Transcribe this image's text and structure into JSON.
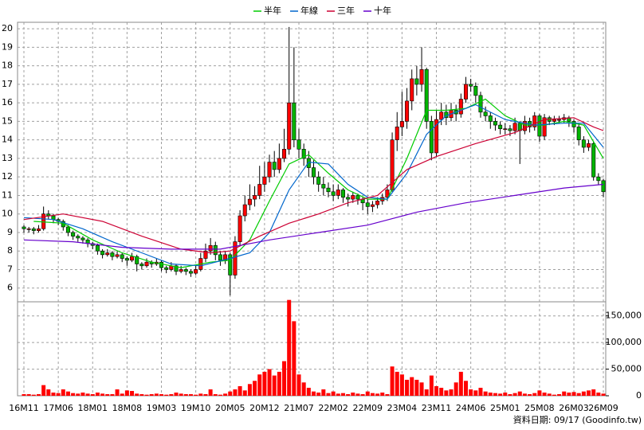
{
  "chart_data": {
    "type": "candlestick",
    "up_color": "#ff0000",
    "down_color": "#00b400",
    "grid": true,
    "ylim": [
      5.3,
      20.35
    ],
    "yticks": [
      6,
      7,
      8,
      9,
      10,
      11,
      12,
      13,
      14,
      15,
      16,
      17,
      18,
      19,
      20
    ],
    "categories": [
      "16M11",
      null,
      null,
      null,
      null,
      null,
      null,
      "17M06",
      null,
      null,
      null,
      null,
      null,
      null,
      "18M01",
      null,
      null,
      null,
      null,
      null,
      null,
      "18M08",
      null,
      null,
      null,
      null,
      null,
      null,
      "19M03",
      null,
      null,
      null,
      null,
      null,
      null,
      "19M10",
      null,
      null,
      null,
      null,
      null,
      null,
      "20M05",
      null,
      null,
      null,
      null,
      null,
      null,
      "20M12",
      null,
      null,
      null,
      null,
      null,
      null,
      "21M07",
      null,
      null,
      null,
      null,
      null,
      null,
      "22M02",
      null,
      null,
      null,
      null,
      null,
      null,
      "22M09",
      null,
      null,
      null,
      null,
      null,
      null,
      "23M04",
      null,
      null,
      null,
      null,
      null,
      null,
      "23M11",
      null,
      null,
      null,
      null,
      null,
      null,
      "24M06",
      null,
      null,
      null,
      null,
      null,
      null,
      "25M01",
      null,
      null,
      null,
      null,
      null,
      null,
      "25M08",
      null,
      null,
      null,
      null,
      null,
      null,
      "26M03",
      null,
      null,
      null,
      null,
      null,
      "26M09"
    ],
    "ohlc": [
      [
        9.3,
        9.4,
        9.0,
        9.2
      ],
      [
        9.2,
        9.3,
        9.0,
        9.2
      ],
      [
        9.2,
        9.3,
        8.9,
        9.1
      ],
      [
        9.1,
        9.4,
        9.0,
        9.2
      ],
      [
        9.2,
        10.4,
        9.1,
        10.0
      ],
      [
        10.0,
        10.2,
        9.7,
        9.9
      ],
      [
        9.9,
        10.0,
        9.5,
        9.7
      ],
      [
        9.7,
        9.8,
        9.4,
        9.6
      ],
      [
        9.6,
        9.7,
        9.1,
        9.3
      ],
      [
        9.3,
        9.4,
        8.8,
        9.0
      ],
      [
        9.0,
        9.1,
        8.6,
        8.8
      ],
      [
        8.8,
        8.9,
        8.5,
        8.7
      ],
      [
        8.7,
        8.8,
        8.4,
        8.6
      ],
      [
        8.6,
        8.7,
        8.2,
        8.4
      ],
      [
        8.4,
        8.5,
        8.1,
        8.3
      ],
      [
        8.3,
        8.4,
        7.8,
        8.0
      ],
      [
        8.0,
        8.1,
        7.6,
        7.8
      ],
      [
        7.8,
        8.1,
        7.7,
        7.9
      ],
      [
        7.9,
        8.0,
        7.5,
        7.7
      ],
      [
        7.7,
        8.0,
        7.6,
        7.8
      ],
      [
        7.8,
        7.9,
        7.4,
        7.6
      ],
      [
        7.6,
        7.7,
        7.2,
        7.5
      ],
      [
        7.5,
        7.9,
        7.4,
        7.7
      ],
      [
        7.7,
        7.8,
        6.9,
        7.3
      ],
      [
        7.3,
        7.4,
        7.0,
        7.2
      ],
      [
        7.2,
        7.6,
        7.1,
        7.4
      ],
      [
        7.4,
        7.5,
        7.1,
        7.3
      ],
      [
        7.3,
        7.6,
        7.2,
        7.4
      ],
      [
        7.4,
        7.5,
        6.9,
        7.1
      ],
      [
        7.1,
        7.2,
        6.8,
        7.0
      ],
      [
        7.0,
        7.4,
        6.9,
        7.2
      ],
      [
        7.2,
        7.3,
        6.7,
        6.9
      ],
      [
        6.9,
        7.2,
        6.8,
        7.0
      ],
      [
        7.0,
        7.1,
        6.7,
        6.9
      ],
      [
        6.9,
        7.0,
        6.6,
        6.8
      ],
      [
        6.8,
        7.2,
        6.7,
        7.0
      ],
      [
        7.0,
        7.9,
        6.9,
        7.6
      ],
      [
        7.6,
        8.4,
        7.4,
        8.0
      ],
      [
        8.0,
        8.7,
        7.8,
        8.3
      ],
      [
        8.3,
        8.5,
        7.5,
        7.8
      ],
      [
        7.8,
        8.0,
        7.2,
        7.5
      ],
      [
        7.5,
        8.0,
        7.3,
        7.8
      ],
      [
        7.8,
        7.9,
        5.6,
        6.7
      ],
      [
        6.7,
        8.8,
        6.5,
        8.5
      ],
      [
        8.5,
        10.2,
        8.3,
        9.9
      ],
      [
        9.9,
        11.0,
        9.6,
        10.5
      ],
      [
        10.5,
        11.6,
        10.2,
        10.8
      ],
      [
        10.8,
        11.5,
        10.4,
        11.0
      ],
      [
        11.0,
        12.6,
        10.8,
        11.6
      ],
      [
        11.6,
        12.8,
        11.2,
        12.0
      ],
      [
        12.0,
        13.2,
        11.7,
        12.8
      ],
      [
        12.8,
        13.4,
        12.0,
        12.4
      ],
      [
        12.4,
        13.8,
        12.2,
        13.0
      ],
      [
        13.0,
        14.6,
        12.8,
        13.5
      ],
      [
        13.5,
        20.1,
        13.2,
        16.0
      ],
      [
        16.0,
        19.0,
        13.6,
        14.0
      ],
      [
        14.0,
        14.6,
        13.0,
        13.5
      ],
      [
        13.5,
        13.8,
        12.6,
        13.0
      ],
      [
        13.0,
        13.4,
        12.0,
        12.5
      ],
      [
        12.5,
        12.9,
        11.6,
        12.0
      ],
      [
        12.0,
        12.3,
        11.2,
        11.6
      ],
      [
        11.6,
        12.0,
        11.0,
        11.4
      ],
      [
        11.4,
        11.7,
        10.9,
        11.2
      ],
      [
        11.2,
        11.6,
        10.7,
        11.0
      ],
      [
        11.0,
        11.6,
        10.8,
        11.3
      ],
      [
        11.3,
        11.4,
        10.6,
        10.9
      ],
      [
        10.9,
        11.1,
        10.4,
        10.8
      ],
      [
        10.8,
        11.2,
        10.6,
        11.0
      ],
      [
        11.0,
        11.1,
        10.5,
        10.8
      ],
      [
        10.8,
        10.9,
        10.2,
        10.6
      ],
      [
        10.6,
        10.8,
        10.0,
        10.4
      ],
      [
        10.4,
        10.7,
        10.1,
        10.5
      ],
      [
        10.5,
        10.9,
        10.3,
        10.7
      ],
      [
        10.7,
        11.1,
        10.5,
        10.9
      ],
      [
        10.9,
        11.6,
        10.7,
        11.3
      ],
      [
        11.3,
        14.4,
        11.2,
        14.0
      ],
      [
        14.0,
        15.5,
        13.4,
        14.7
      ],
      [
        14.7,
        16.6,
        14.2,
        15.0
      ],
      [
        15.0,
        16.8,
        14.6,
        16.1
      ],
      [
        16.1,
        17.8,
        15.6,
        17.3
      ],
      [
        17.3,
        18.0,
        16.4,
        17.0
      ],
      [
        17.0,
        19.0,
        16.6,
        17.8
      ],
      [
        17.8,
        17.9,
        14.6,
        15.0
      ],
      [
        15.0,
        15.3,
        12.9,
        13.3
      ],
      [
        13.3,
        15.6,
        13.1,
        15.1
      ],
      [
        15.1,
        16.0,
        14.8,
        15.5
      ],
      [
        15.5,
        15.9,
        14.8,
        15.2
      ],
      [
        15.2,
        16.0,
        15.0,
        15.6
      ],
      [
        15.6,
        15.9,
        15.0,
        15.4
      ],
      [
        15.4,
        16.5,
        15.2,
        16.2
      ],
      [
        16.2,
        17.4,
        16.0,
        17.0
      ],
      [
        17.0,
        17.3,
        16.6,
        16.9
      ],
      [
        16.9,
        17.1,
        16.0,
        16.4
      ],
      [
        16.4,
        16.6,
        15.2,
        15.5
      ],
      [
        15.5,
        15.8,
        15.0,
        15.3
      ],
      [
        15.3,
        15.5,
        14.6,
        15.0
      ],
      [
        15.0,
        15.2,
        14.5,
        14.8
      ],
      [
        14.8,
        15.0,
        14.3,
        14.6
      ],
      [
        14.6,
        14.9,
        14.3,
        14.6
      ],
      [
        14.6,
        14.8,
        14.2,
        14.5
      ],
      [
        14.5,
        15.2,
        14.3,
        14.9
      ],
      [
        14.9,
        15.0,
        12.7,
        14.5
      ],
      [
        14.5,
        15.3,
        14.3,
        15.0
      ],
      [
        15.0,
        15.2,
        14.4,
        14.7
      ],
      [
        14.7,
        15.5,
        14.5,
        15.3
      ],
      [
        15.3,
        15.4,
        13.9,
        14.2
      ],
      [
        14.2,
        15.4,
        14.0,
        15.2
      ],
      [
        15.2,
        15.3,
        14.8,
        15.0
      ],
      [
        15.0,
        15.3,
        14.8,
        15.1
      ],
      [
        15.1,
        15.3,
        14.9,
        15.1
      ],
      [
        15.1,
        15.4,
        14.9,
        15.2
      ],
      [
        15.2,
        15.3,
        14.7,
        15.0
      ],
      [
        15.0,
        15.1,
        14.4,
        14.7
      ],
      [
        14.7,
        14.9,
        13.7,
        14.0
      ],
      [
        14.0,
        14.2,
        13.3,
        13.6
      ],
      [
        13.6,
        14.0,
        13.4,
        13.8
      ],
      [
        13.8,
        13.9,
        11.8,
        12.0
      ],
      [
        12.0,
        12.2,
        11.6,
        11.8
      ],
      [
        11.8,
        11.9,
        10.9,
        11.2
      ]
    ],
    "moving_averages": [
      {
        "name": "半年",
        "color": "#00cc00",
        "x": [
          2,
          8,
          14,
          20,
          26,
          32,
          38,
          42,
          46,
          50,
          54,
          58,
          62,
          66,
          70,
          74,
          78,
          82,
          86,
          90,
          94,
          98,
          102,
          106,
          110,
          114,
          118
        ],
        "values": [
          9.6,
          9.5,
          8.6,
          7.9,
          7.4,
          7.1,
          7.4,
          7.5,
          8.6,
          10.7,
          12.7,
          13.2,
          12.2,
          11.3,
          10.8,
          10.8,
          13.0,
          15.6,
          15.6,
          15.7,
          16.2,
          15.3,
          14.8,
          14.8,
          15.0,
          14.8,
          13.0
        ]
      },
      {
        "name": "年線",
        "color": "#0066cc",
        "x": [
          0,
          6,
          12,
          18,
          24,
          30,
          36,
          42,
          46,
          50,
          54,
          58,
          62,
          66,
          70,
          74,
          78,
          82,
          86,
          92,
          98,
          104,
          110,
          114,
          118
        ],
        "values": [
          9.8,
          9.7,
          9.2,
          8.5,
          7.9,
          7.3,
          7.2,
          7.6,
          7.9,
          9.0,
          11.3,
          12.8,
          12.7,
          11.6,
          10.9,
          10.8,
          12.2,
          14.3,
          15.3,
          15.9,
          15.1,
          14.8,
          14.9,
          14.9,
          13.6
        ]
      },
      {
        "name": "三年",
        "color": "#cc0033",
        "x": [
          0,
          8,
          16,
          24,
          32,
          38,
          42,
          48,
          54,
          60,
          66,
          72,
          78,
          84,
          92,
          100,
          106,
          112,
          116,
          118
        ],
        "values": [
          9.7,
          10.0,
          9.6,
          8.8,
          8.1,
          7.9,
          8.0,
          8.8,
          9.5,
          10.0,
          10.6,
          11.0,
          12.4,
          13.1,
          13.8,
          14.4,
          15.1,
          15.2,
          14.7,
          14.5
        ]
      },
      {
        "name": "十年",
        "color": "#6600cc",
        "x": [
          0,
          10,
          20,
          30,
          40,
          50,
          60,
          70,
          80,
          90,
          100,
          110,
          118
        ],
        "values": [
          8.6,
          8.5,
          8.2,
          8.1,
          8.1,
          8.6,
          9.0,
          9.4,
          10.1,
          10.6,
          11.0,
          11.4,
          11.6
        ]
      }
    ],
    "volume": {
      "color": "#ff0000",
      "ylim": [
        0,
        175000
      ],
      "yticks": [
        0,
        {
          "value": 50000,
          "label": "50,000"
        },
        {
          "value": 100000,
          "label": "100,000"
        },
        {
          "value": 150000,
          "label": "150,000"
        }
      ],
      "values": [
        3000,
        3000,
        2000,
        3000,
        20000,
        12000,
        6000,
        5000,
        12000,
        8000,
        5000,
        4000,
        6000,
        4000,
        3000,
        6000,
        4000,
        3000,
        3000,
        12000,
        4000,
        10000,
        9000,
        4000,
        3000,
        2000,
        3000,
        4000,
        3000,
        2000,
        3000,
        6000,
        4000,
        3000,
        3000,
        2000,
        4000,
        3000,
        12000,
        3000,
        2000,
        4000,
        8000,
        12000,
        18000,
        10000,
        22000,
        28000,
        40000,
        45000,
        50000,
        38000,
        45000,
        65000,
        180000,
        140000,
        40000,
        25000,
        15000,
        8000,
        6000,
        12000,
        5000,
        8000,
        4000,
        5000,
        3000,
        6000,
        4000,
        3000,
        8000,
        5000,
        4000,
        6000,
        3000,
        55000,
        45000,
        40000,
        30000,
        35000,
        30000,
        25000,
        12000,
        38000,
        18000,
        15000,
        10000,
        12000,
        25000,
        45000,
        28000,
        12000,
        10000,
        15000,
        8000,
        6000,
        5000,
        4000,
        6000,
        3000,
        5000,
        8000,
        4000,
        3000,
        5000,
        10000,
        6000,
        4000,
        2000,
        3000,
        8000,
        6000,
        7000,
        5000,
        8000,
        10000,
        12000,
        6000,
        4000
      ]
    }
  },
  "footer": "資料日期: 09/17 (Goodinfo.tw)"
}
